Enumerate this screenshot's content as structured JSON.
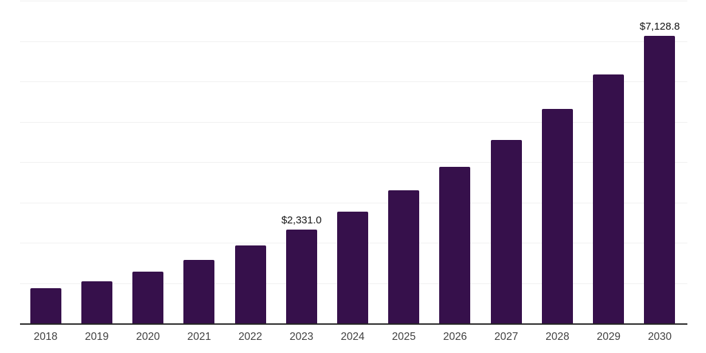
{
  "chart_data": {
    "type": "bar",
    "title": "",
    "xlabel": "",
    "ylabel": "",
    "categories": [
      "2018",
      "2019",
      "2020",
      "2021",
      "2022",
      "2023",
      "2024",
      "2025",
      "2026",
      "2027",
      "2028",
      "2029",
      "2030"
    ],
    "values": [
      870,
      1040,
      1285,
      1580,
      1935,
      2331.0,
      2770,
      3305,
      3880,
      4550,
      5320,
      6175,
      7128.8
    ],
    "value_labels": {
      "2023": "$2,331.0",
      "2030": "$7,128.8"
    },
    "ylim": [
      0,
      8000
    ],
    "gridline_step": 1000,
    "grid": true,
    "y_axis_tick_labels_visible": false,
    "legend_position": "none",
    "colors": {
      "bar": "#36104B",
      "axis_line": "#262626",
      "gridline": "#f0f0f0",
      "value_label_text": "#141414",
      "x_tick_text": "#3f3f3f",
      "background": "#ffffff"
    }
  }
}
